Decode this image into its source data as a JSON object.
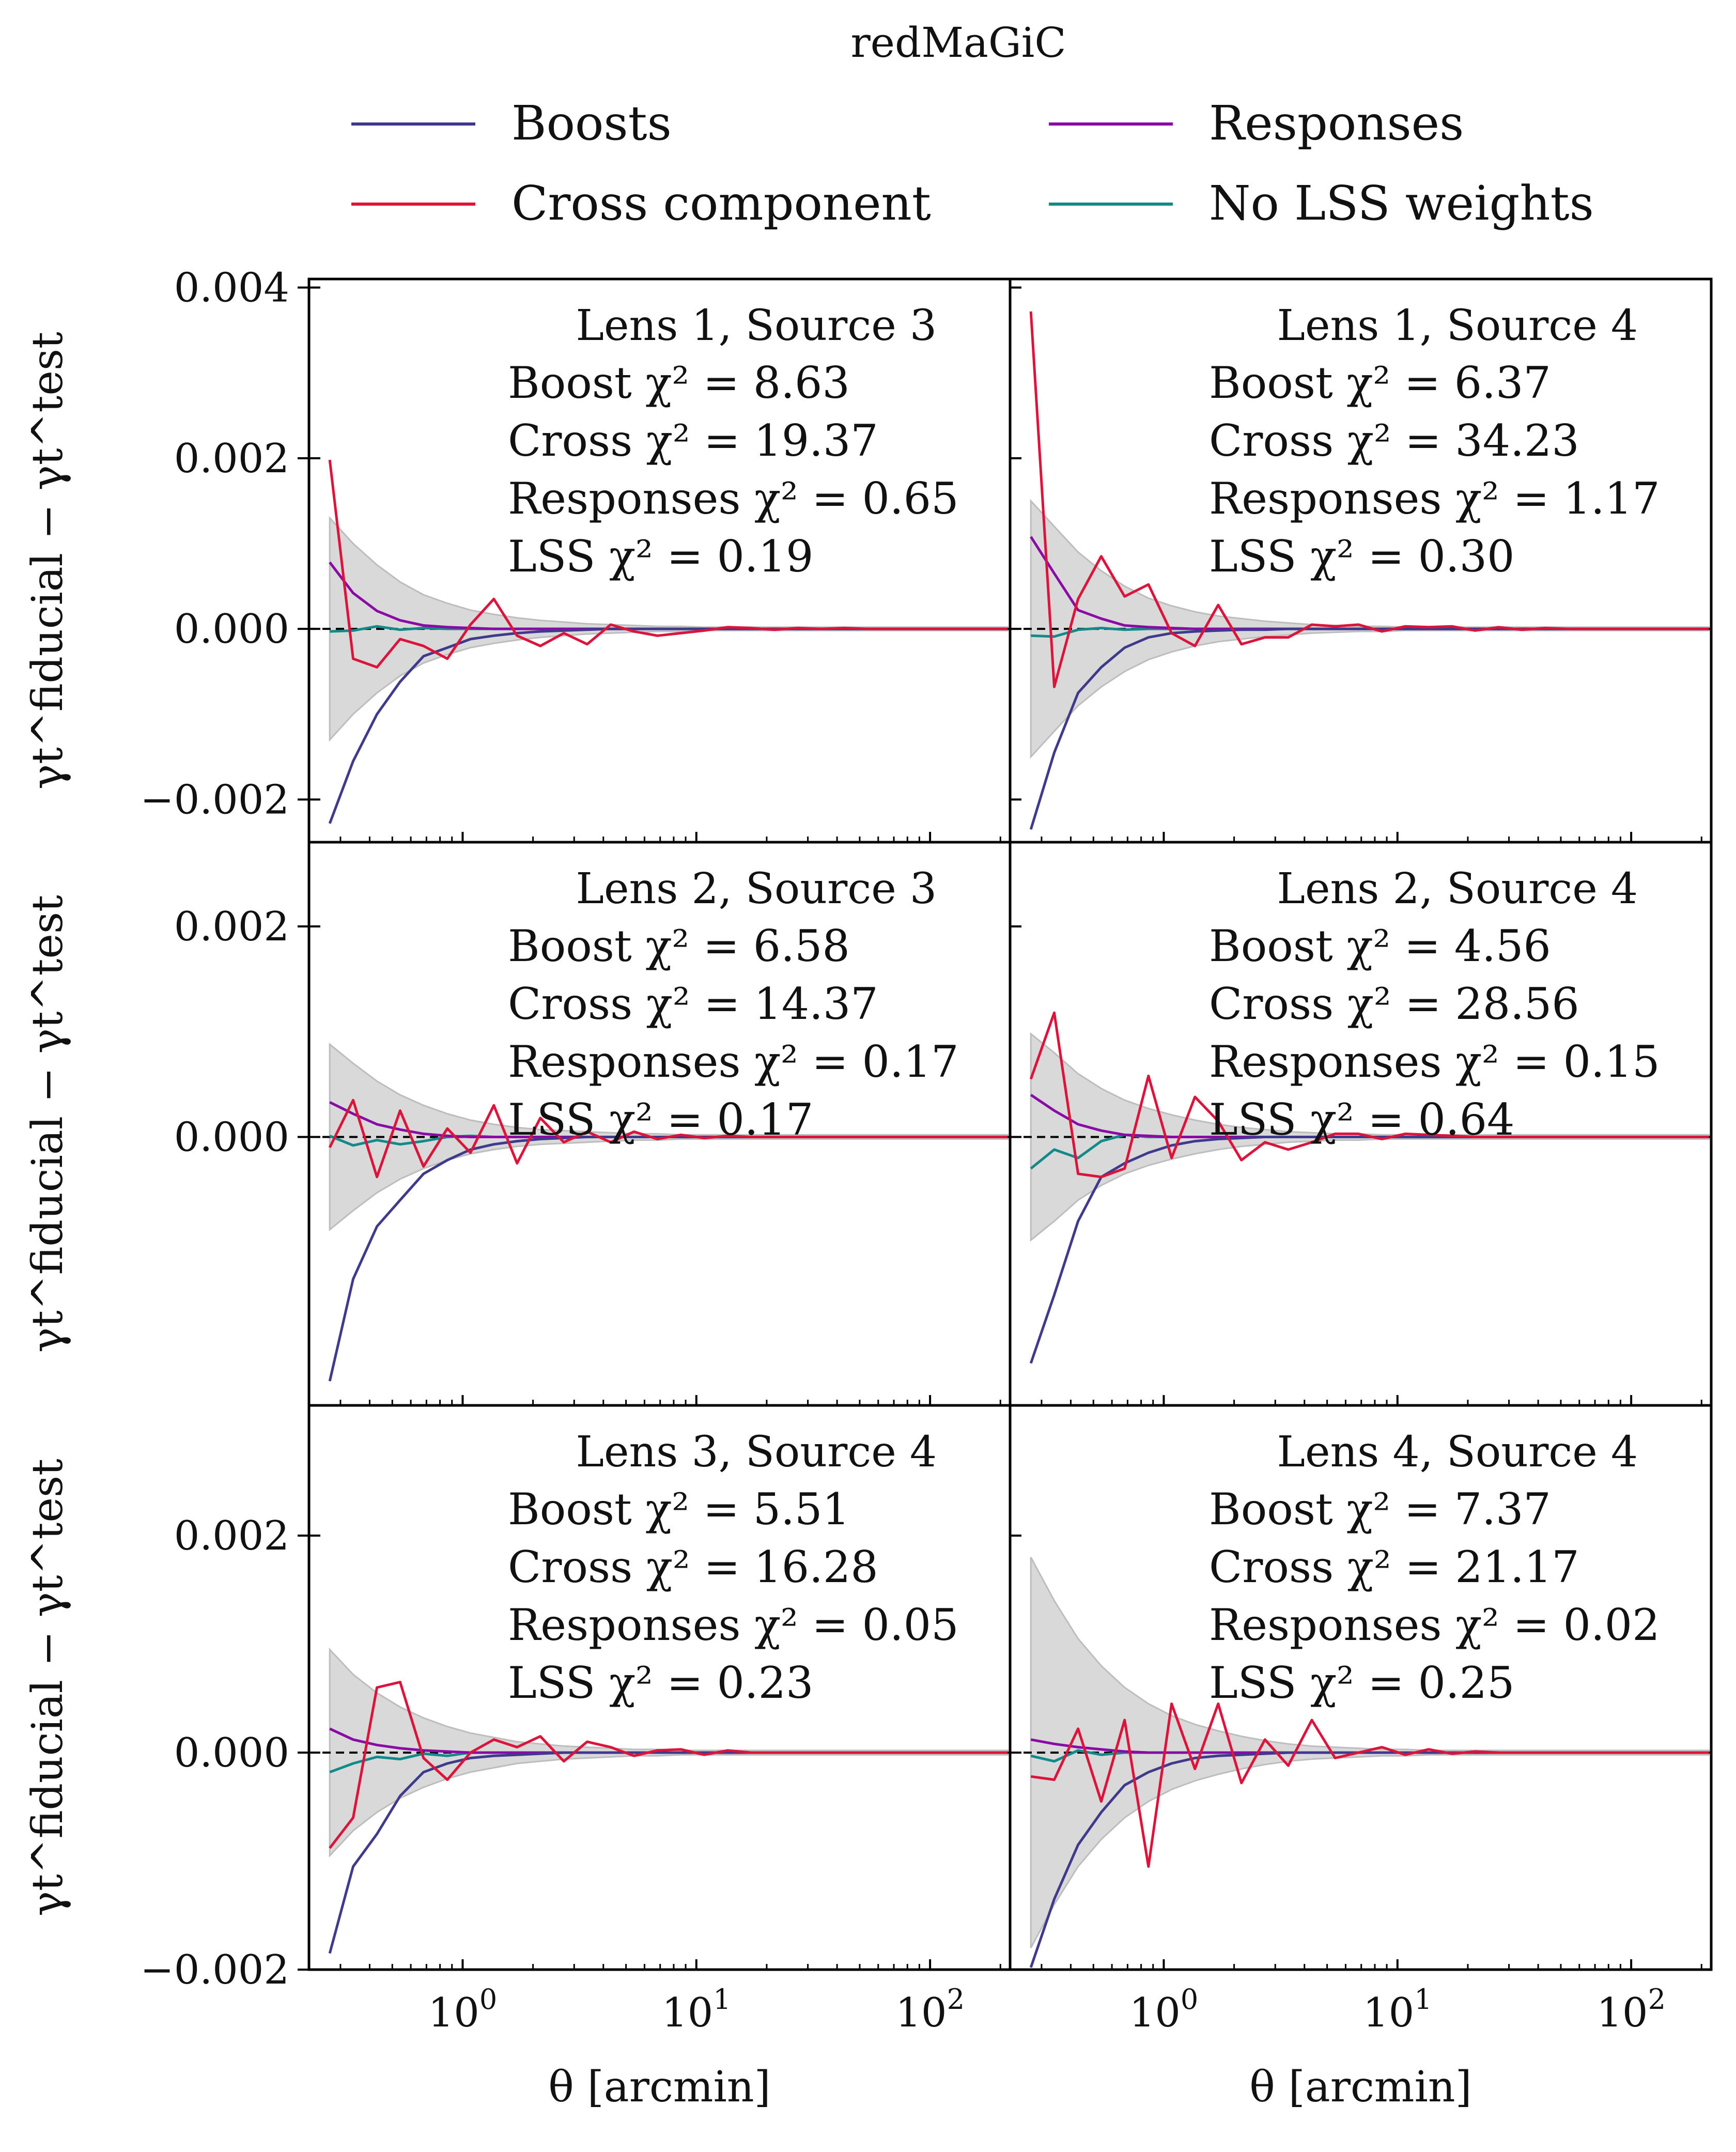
{
  "chart_data": {
    "type": "line",
    "title": "redMaGiC",
    "xlabel": "θ [arcmin]",
    "ylabel": "γt^fiducial − γt^test",
    "xscale": "log",
    "xlim": [
      0.22,
      220
    ],
    "xticks": [
      {
        "value": 1,
        "label": "10^0"
      },
      {
        "value": 10,
        "label": "10^1"
      },
      {
        "value": 100,
        "label": "10^2"
      }
    ],
    "legend": {
      "placement": "top",
      "entries": [
        {
          "key": "boost",
          "label": "Boosts",
          "color": "#3f3a8c"
        },
        {
          "key": "resp",
          "label": "Responses",
          "color": "#8b0aa5"
        },
        {
          "key": "cross",
          "label": "Cross component",
          "color": "#dc143c"
        },
        {
          "key": "lss",
          "label": "No LSS weights",
          "color": "#128a8a"
        }
      ]
    },
    "error_band_color": "#d9d9d9",
    "x": [
      0.27,
      0.34,
      0.43,
      0.54,
      0.68,
      0.86,
      1.08,
      1.36,
      1.71,
      2.15,
      2.71,
      3.41,
      4.3,
      5.41,
      6.81,
      8.58,
      10.8,
      13.6,
      17.1,
      21.5,
      27.1,
      34.1,
      42.9,
      54.1,
      68.1,
      85.8,
      108,
      136,
      171,
      215
    ],
    "rows": [
      {
        "ylim": [
          -0.0025,
          0.0041
        ],
        "yticks": [
          {
            "value": -0.002,
            "label": "−0.002"
          },
          {
            "value": 0.0,
            "label": "0.000"
          },
          {
            "value": 0.002,
            "label": "0.002"
          },
          {
            "value": 0.004,
            "label": "0.004"
          }
        ]
      },
      {
        "ylim": [
          -0.00255,
          0.0028
        ],
        "yticks": [
          {
            "value": 0.0,
            "label": "0.000"
          },
          {
            "value": 0.002,
            "label": "0.002"
          }
        ]
      },
      {
        "ylim": [
          -0.002,
          0.0032
        ],
        "yticks": [
          {
            "value": -0.002,
            "label": "−0.002"
          },
          {
            "value": 0.0,
            "label": "0.000"
          },
          {
            "value": 0.002,
            "label": "0.002"
          }
        ]
      }
    ],
    "panels": [
      {
        "title": "Lens 1, Source 3",
        "boost_chi2": "Boost χ² = 8.63",
        "cross_chi2": "Cross χ² = 19.37",
        "resp_chi2": "Responses χ² = 0.65",
        "lss_chi2": "LSS χ² = 0.19",
        "row": 0,
        "col": 0,
        "band": [
          0.0013,
          0.001,
          0.00075,
          0.00055,
          0.0004,
          0.0003,
          0.00022,
          0.00017,
          0.00013,
          0.0001,
          8e-05,
          6e-05,
          5e-05,
          4e-05,
          3e-05,
          3e-05,
          2e-05,
          2e-05,
          2e-05,
          2e-05,
          2e-05,
          2e-05,
          2e-05,
          2e-05,
          2e-05,
          2e-05,
          2e-05,
          2e-05,
          2e-05,
          2e-05
        ],
        "boost": [
          -0.00228,
          -0.00155,
          -0.001,
          -0.00062,
          -0.00032,
          -0.00022,
          -0.00012,
          -8e-05,
          -5e-05,
          -3e-05,
          -2e-05,
          -1e-05,
          0,
          0,
          0,
          0,
          0,
          0,
          0,
          0,
          0,
          0,
          0,
          0,
          0,
          0,
          0,
          0,
          0,
          0
        ],
        "cross": [
          0.00198,
          -0.00035,
          -0.00045,
          -0.00012,
          -0.0002,
          -0.00035,
          5e-05,
          0.00035,
          -8e-05,
          -0.0002,
          -5e-05,
          -0.00018,
          5e-05,
          -3e-05,
          -8e-05,
          -5e-05,
          -2e-05,
          2e-05,
          1e-05,
          -1e-05,
          1e-05,
          0,
          1e-05,
          0,
          0,
          0,
          0,
          0,
          0,
          0
        ],
        "resp": [
          0.00078,
          0.00042,
          0.00021,
          0.0001,
          4e-05,
          2e-05,
          1e-05,
          0,
          0,
          0,
          0,
          0,
          0,
          0,
          0,
          0,
          0,
          0,
          0,
          0,
          0,
          0,
          0,
          0,
          0,
          0,
          0,
          0,
          0,
          0
        ],
        "lss": [
          -3e-05,
          -2e-05,
          3e-05,
          -1e-05,
          1e-05,
          0,
          0,
          0,
          0,
          0,
          0,
          0,
          0,
          0,
          0,
          0,
          0,
          0,
          0,
          0,
          0,
          0,
          0,
          0,
          0,
          0,
          0,
          0,
          0,
          0
        ]
      },
      {
        "title": "Lens 1, Source 4",
        "boost_chi2": "Boost χ² = 6.37",
        "cross_chi2": "Cross χ² = 34.23",
        "resp_chi2": "Responses χ² = 1.17",
        "lss_chi2": "LSS χ² = 0.30",
        "row": 0,
        "col": 1,
        "band": [
          0.0015,
          0.0012,
          0.0009,
          0.00068,
          0.0005,
          0.00036,
          0.00027,
          0.0002,
          0.00015,
          0.00012,
          9e-05,
          7e-05,
          5e-05,
          4e-05,
          3e-05,
          3e-05,
          2e-05,
          2e-05,
          2e-05,
          2e-05,
          2e-05,
          2e-05,
          2e-05,
          2e-05,
          2e-05,
          2e-05,
          2e-05,
          2e-05,
          2e-05,
          2e-05
        ],
        "boost": [
          -0.00235,
          -0.00145,
          -0.00075,
          -0.00045,
          -0.00022,
          -0.0001,
          -5e-05,
          -3e-05,
          -2e-05,
          -1e-05,
          -1e-05,
          0,
          0,
          0,
          0,
          0,
          0,
          0,
          0,
          0,
          0,
          0,
          0,
          0,
          0,
          0,
          0,
          0,
          0,
          0
        ],
        "cross": [
          0.00372,
          -0.00068,
          0.00035,
          0.00085,
          0.00038,
          0.00052,
          -5e-05,
          -0.0002,
          0.00028,
          -0.00018,
          -0.0001,
          -0.0001,
          5e-05,
          3e-05,
          5e-05,
          -3e-05,
          3e-05,
          2e-05,
          3e-05,
          -2e-05,
          2e-05,
          -1e-05,
          1e-05,
          0,
          0,
          0,
          0,
          0,
          0,
          0
        ],
        "resp": [
          0.00108,
          0.00065,
          0.00022,
          0.00012,
          4e-05,
          2e-05,
          1e-05,
          0,
          0,
          0,
          0,
          0,
          0,
          0,
          0,
          0,
          0,
          0,
          0,
          0,
          0,
          0,
          0,
          0,
          0,
          0,
          0,
          0,
          0,
          0
        ],
        "lss": [
          -8e-05,
          -9e-05,
          -1e-05,
          1e-05,
          -1e-05,
          0,
          0,
          0,
          0,
          0,
          0,
          0,
          0,
          0,
          0,
          0,
          0,
          0,
          0,
          0,
          0,
          0,
          0,
          0,
          0,
          0,
          0,
          0,
          0,
          0
        ]
      },
      {
        "title": "Lens 2, Source 3",
        "boost_chi2": "Boost χ² = 6.58",
        "cross_chi2": "Cross χ² = 14.37",
        "resp_chi2": "Responses χ² = 0.17",
        "lss_chi2": "LSS χ² = 0.17",
        "row": 1,
        "col": 0,
        "band": [
          0.00088,
          0.0007,
          0.00053,
          0.0004,
          0.0003,
          0.00022,
          0.00016,
          0.00012,
          9e-05,
          7e-05,
          6e-05,
          5e-05,
          4e-05,
          3e-05,
          3e-05,
          2e-05,
          2e-05,
          2e-05,
          2e-05,
          2e-05,
          2e-05,
          2e-05,
          2e-05,
          2e-05,
          2e-05,
          2e-05,
          2e-05,
          2e-05,
          2e-05,
          2e-05
        ],
        "boost": [
          -0.00232,
          -0.00135,
          -0.00085,
          -0.0006,
          -0.00035,
          -0.00022,
          -0.00012,
          -7e-05,
          -4e-05,
          -2e-05,
          -1e-05,
          0,
          0,
          0,
          0,
          0,
          0,
          0,
          0,
          0,
          0,
          0,
          0,
          0,
          0,
          0,
          0,
          0,
          0,
          0
        ],
        "cross": [
          -0.0001,
          0.00035,
          -0.00038,
          0.00025,
          -0.00028,
          8e-05,
          -0.00015,
          0.0003,
          -0.00025,
          0.00018,
          -5e-05,
          5e-05,
          -5e-05,
          5e-05,
          -2e-05,
          2e-05,
          -1e-05,
          1e-05,
          0,
          0,
          0,
          0,
          0,
          0,
          0,
          0,
          0,
          0,
          0,
          0
        ],
        "resp": [
          0.00033,
          0.00022,
          0.00012,
          7e-05,
          3e-05,
          1e-05,
          0,
          0,
          0,
          0,
          0,
          0,
          0,
          0,
          0,
          0,
          0,
          0,
          0,
          0,
          0,
          0,
          0,
          0,
          0,
          0,
          0,
          0,
          0,
          0
        ],
        "lss": [
          1e-05,
          -8e-05,
          -3e-05,
          -7e-05,
          -4e-05,
          0,
          1e-05,
          0,
          0,
          0,
          0,
          0,
          0,
          0,
          0,
          0,
          0,
          0,
          0,
          0,
          0,
          0,
          0,
          0,
          0,
          0,
          0,
          0,
          0,
          0
        ]
      },
      {
        "title": "Lens 2, Source 4",
        "boost_chi2": "Boost χ² = 4.56",
        "cross_chi2": "Cross χ² = 28.56",
        "resp_chi2": "Responses χ² = 0.15",
        "lss_chi2": "LSS χ² = 0.64",
        "row": 1,
        "col": 1,
        "band": [
          0.00098,
          0.0008,
          0.0006,
          0.00046,
          0.00035,
          0.00027,
          0.00021,
          0.00016,
          0.00012,
          9e-05,
          7e-05,
          5e-05,
          4e-05,
          3e-05,
          3e-05,
          2e-05,
          2e-05,
          2e-05,
          2e-05,
          2e-05,
          2e-05,
          2e-05,
          2e-05,
          2e-05,
          2e-05,
          2e-05,
          2e-05,
          2e-05,
          2e-05,
          2e-05
        ],
        "boost": [
          -0.00215,
          -0.0015,
          -0.0008,
          -0.00038,
          -0.00025,
          -0.00015,
          -8e-05,
          -4e-05,
          -2e-05,
          -1e-05,
          0,
          0,
          0,
          0,
          0,
          0,
          0,
          0,
          0,
          0,
          0,
          0,
          0,
          0,
          0,
          0,
          0,
          0,
          0,
          0
        ],
        "cross": [
          0.00055,
          0.00118,
          -0.00035,
          -0.00038,
          -0.0003,
          0.00058,
          -0.0002,
          0.00038,
          0.00015,
          -0.00022,
          -5e-05,
          -0.00012,
          -5e-05,
          3e-05,
          3e-05,
          -2e-05,
          3e-05,
          2e-05,
          1e-05,
          0,
          0,
          0,
          0,
          0,
          0,
          0,
          0,
          0,
          0,
          0
        ],
        "resp": [
          0.0004,
          0.00025,
          0.00012,
          6e-05,
          2e-05,
          1e-05,
          0,
          0,
          0,
          0,
          0,
          0,
          0,
          0,
          0,
          0,
          0,
          0,
          0,
          0,
          0,
          0,
          0,
          0,
          0,
          0,
          0,
          0,
          0,
          0
        ],
        "lss": [
          -0.0003,
          -0.00012,
          -0.0002,
          -4e-05,
          2e-05,
          0,
          0,
          0,
          0,
          0,
          0,
          0,
          0,
          0,
          0,
          0,
          0,
          0,
          0,
          0,
          0,
          0,
          0,
          0,
          0,
          0,
          0,
          0,
          0,
          0
        ]
      },
      {
        "title": "Lens 3, Source 4",
        "boost_chi2": "Boost χ² = 5.51",
        "cross_chi2": "Cross χ² = 16.28",
        "resp_chi2": "Responses χ² = 0.05",
        "lss_chi2": "LSS χ² = 0.23",
        "row": 2,
        "col": 0,
        "band": [
          0.00095,
          0.00072,
          0.00055,
          0.00042,
          0.00032,
          0.00024,
          0.00018,
          0.00014,
          0.0001,
          8e-05,
          6e-05,
          5e-05,
          4e-05,
          3e-05,
          3e-05,
          2e-05,
          2e-05,
          2e-05,
          2e-05,
          2e-05,
          2e-05,
          2e-05,
          2e-05,
          2e-05,
          2e-05,
          2e-05,
          2e-05,
          2e-05,
          2e-05,
          2e-05
        ],
        "boost": [
          -0.00185,
          -0.00105,
          -0.00075,
          -0.0004,
          -0.00018,
          -0.0001,
          -5e-05,
          -3e-05,
          -2e-05,
          -1e-05,
          0,
          0,
          0,
          0,
          0,
          0,
          0,
          0,
          0,
          0,
          0,
          0,
          0,
          0,
          0,
          0,
          0,
          0,
          0,
          0
        ],
        "cross": [
          -0.00088,
          -0.0006,
          0.0006,
          0.00065,
          -5e-05,
          -0.00025,
          0.0,
          0.00012,
          5e-05,
          0.00015,
          -8e-05,
          0.0001,
          5e-05,
          -3e-05,
          2e-05,
          3e-05,
          -2e-05,
          2e-05,
          0,
          0,
          0,
          0,
          0,
          0,
          0,
          0,
          0,
          0,
          0,
          0
        ],
        "resp": [
          0.00022,
          0.00012,
          7e-05,
          4e-05,
          2e-05,
          1e-05,
          0,
          0,
          0,
          0,
          0,
          0,
          0,
          0,
          0,
          0,
          0,
          0,
          0,
          0,
          0,
          0,
          0,
          0,
          0,
          0,
          0,
          0,
          0,
          0
        ],
        "lss": [
          -0.00018,
          -0.0001,
          -4e-05,
          -6e-05,
          -1e-05,
          -3e-05,
          0,
          0,
          0,
          0,
          0,
          0,
          0,
          0,
          0,
          0,
          0,
          0,
          0,
          0,
          0,
          0,
          0,
          0,
          0,
          0,
          0,
          0,
          0,
          0
        ]
      },
      {
        "title": "Lens 4, Source 4",
        "boost_chi2": "Boost χ² = 7.37",
        "cross_chi2": "Cross χ² = 21.17",
        "resp_chi2": "Responses χ² = 0.02",
        "lss_chi2": "LSS χ² = 0.25",
        "row": 2,
        "col": 1,
        "band": [
          0.0018,
          0.0014,
          0.00105,
          0.0008,
          0.0006,
          0.00045,
          0.00034,
          0.00026,
          0.0002,
          0.00015,
          0.00011,
          8e-05,
          6e-05,
          5e-05,
          4e-05,
          3e-05,
          3e-05,
          2e-05,
          2e-05,
          2e-05,
          2e-05,
          2e-05,
          2e-05,
          2e-05,
          2e-05,
          2e-05,
          2e-05,
          2e-05,
          2e-05,
          2e-05
        ],
        "boost": [
          -0.00198,
          -0.00135,
          -0.00085,
          -0.00055,
          -0.0003,
          -0.00018,
          -0.0001,
          -5e-05,
          -3e-05,
          -2e-05,
          -1e-05,
          0,
          0,
          0,
          0,
          0,
          0,
          0,
          0,
          0,
          0,
          0,
          0,
          0,
          0,
          0,
          0,
          0,
          0,
          0
        ],
        "cross": [
          -0.00022,
          -0.00025,
          0.00022,
          -0.00045,
          0.0003,
          -0.00105,
          0.00045,
          -0.00015,
          0.00045,
          -0.00028,
          0.00012,
          -0.00012,
          0.0003,
          -5e-05,
          0.0,
          5e-05,
          -2e-05,
          3e-05,
          -1e-05,
          1e-05,
          0,
          0,
          0,
          0,
          0,
          0,
          0,
          0,
          0,
          0
        ],
        "resp": [
          0.00012,
          8e-05,
          5e-05,
          3e-05,
          1e-05,
          0,
          0,
          0,
          0,
          0,
          0,
          0,
          0,
          0,
          0,
          0,
          0,
          0,
          0,
          0,
          0,
          0,
          0,
          0,
          0,
          0,
          0,
          0,
          0,
          0
        ],
        "lss": [
          -3e-05,
          -8e-05,
          2e-05,
          -2e-05,
          0,
          0,
          0,
          0,
          0,
          0,
          0,
          0,
          0,
          0,
          0,
          0,
          0,
          0,
          0,
          0,
          0,
          0,
          0,
          0,
          0,
          0,
          0,
          0,
          0,
          0
        ]
      }
    ]
  }
}
